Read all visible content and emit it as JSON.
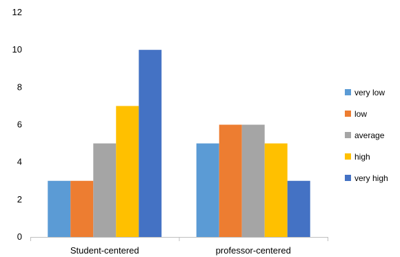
{
  "chart_data": {
    "type": "bar",
    "categories": [
      "Student-centered",
      "professor-centered"
    ],
    "series": [
      {
        "name": "very low",
        "color": "#5b9bd5",
        "values": [
          3,
          5
        ]
      },
      {
        "name": "low",
        "color": "#ed7d31",
        "values": [
          3,
          6
        ]
      },
      {
        "name": "average",
        "color": "#a5a5a5",
        "values": [
          5,
          6
        ]
      },
      {
        "name": "high",
        "color": "#ffc000",
        "values": [
          7,
          5
        ]
      },
      {
        "name": "very high",
        "color": "#4472c4",
        "values": [
          10,
          3
        ]
      }
    ],
    "ylim": [
      0,
      12
    ],
    "yticks": [
      0,
      2,
      4,
      6,
      8,
      10,
      12
    ],
    "ytick_labels": [
      "0",
      "2",
      "4",
      "6",
      "8",
      "10",
      "12"
    ],
    "grid": false,
    "legend_position": "right",
    "title": "",
    "xlabel": "",
    "ylabel": ""
  }
}
